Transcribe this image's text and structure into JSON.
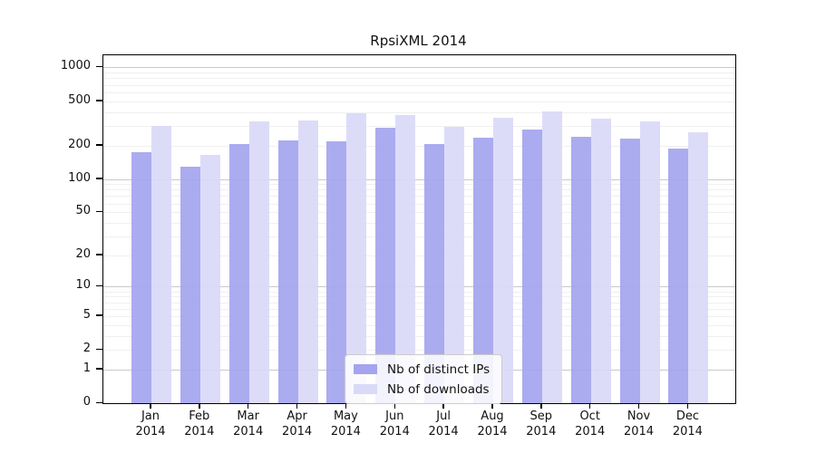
{
  "title": "RpsiXML 2014",
  "year": "2014",
  "months": [
    "Jan",
    "Feb",
    "Mar",
    "Apr",
    "May",
    "Jun",
    "Jul",
    "Aug",
    "Sep",
    "Oct",
    "Nov",
    "Dec"
  ],
  "legend": {
    "items": [
      {
        "label": "Nb of distinct IPs",
        "color": "#a4a4ef"
      },
      {
        "label": "Nb of downloads",
        "color": "#d9d9f8"
      }
    ]
  },
  "y_axis": {
    "tick_labels": [
      "1000",
      "500",
      "200",
      "100",
      "50",
      "20",
      "10",
      "5",
      "2",
      "1",
      "0"
    ],
    "tick_values": [
      1000,
      500,
      200,
      100,
      50,
      20,
      10,
      5,
      2,
      1,
      0
    ]
  },
  "chart_data": {
    "type": "bar",
    "title": "RpsiXML 2014",
    "categories": [
      "Jan 2014",
      "Feb 2014",
      "Mar 2014",
      "Apr 2014",
      "May 2014",
      "Jun 2014",
      "Jul 2014",
      "Aug 2014",
      "Sep 2014",
      "Oct 2014",
      "Nov 2014",
      "Dec 2014"
    ],
    "series": [
      {
        "name": "Nb of distinct IPs",
        "color": "#a4a4ef",
        "values": [
          173,
          130,
          205,
          223,
          216,
          287,
          205,
          235,
          276,
          241,
          232,
          187
        ]
      },
      {
        "name": "Nb of downloads",
        "color": "#d9d9f8",
        "values": [
          301,
          164,
          327,
          337,
          392,
          377,
          292,
          356,
          404,
          346,
          327,
          262
        ]
      }
    ],
    "xlabel": "",
    "ylabel": "",
    "y_scale": "log10(value+1)",
    "y_ticks": [
      0,
      1,
      2,
      5,
      10,
      20,
      50,
      100,
      200,
      500,
      1000
    ],
    "ylim": [
      0,
      1100
    ],
    "grid": "horizontal major at powers of 10, faint minors at 2-9 per decade",
    "legend_position": "lower center"
  }
}
